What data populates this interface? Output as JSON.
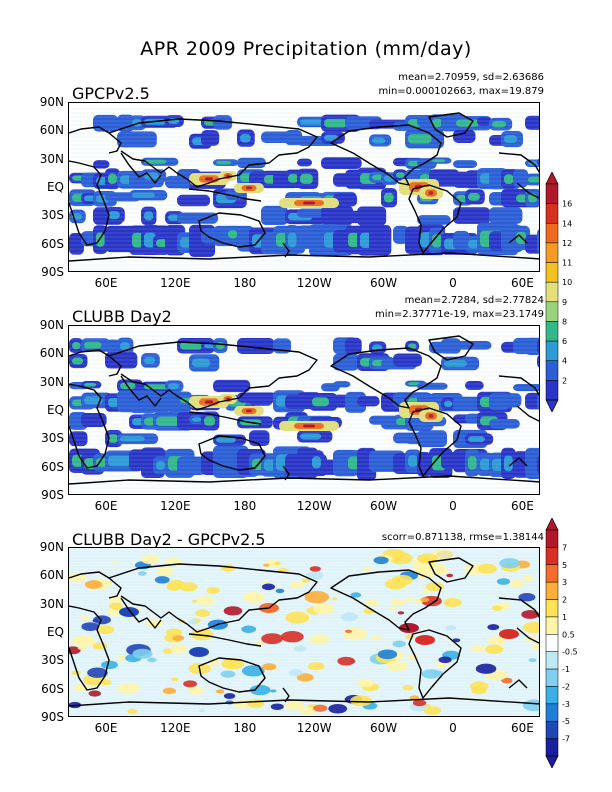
{
  "figure_title": "APR 2009 Precipitation (mm/day)",
  "lat_labels": [
    "90N",
    "60N",
    "30N",
    "EQ",
    "30S",
    "60S",
    "90S"
  ],
  "lon_labels": [
    "60E",
    "120E",
    "180",
    "120W",
    "60W",
    "0",
    "60E"
  ],
  "panels": [
    {
      "title": "GPCPv2.5",
      "stat_line1": "mean=2.70959, sd=2.63686",
      "stat_line2": "min=0.000102663, max=19.879"
    },
    {
      "title": "CLUBB Day2",
      "stat_line1": "mean=2.7284, sd=2.77824",
      "stat_line2": "min=2.37771e-19, max=23.1749"
    },
    {
      "title": "CLUBB Day2 - GPCPv2.5",
      "stat_line1": "scorr=0.871138, rmse=1.38144"
    }
  ],
  "colorbar_precip": {
    "labels": [
      "16",
      "14",
      "12",
      "11",
      "10",
      "9",
      "8",
      "6",
      "4",
      "2"
    ],
    "colors": [
      "#b2182b",
      "#d7301f",
      "#ef6a1a",
      "#f59a23",
      "#f3c221",
      "#e5e07a",
      "#9bd27c",
      "#33b88a",
      "#2f9bd6",
      "#2c5fd6",
      "#2a35c8",
      "#ffffff"
    ]
  },
  "colorbar_diff": {
    "labels": [
      "7",
      "5",
      "3",
      "2",
      "1",
      "0.5",
      "-0.5",
      "-1",
      "-2",
      "-3",
      "-5",
      "-7"
    ],
    "colors": [
      "#b2182b",
      "#d73027",
      "#f46d2a",
      "#fdae3a",
      "#fee255",
      "#fff5a8",
      "#ffffff",
      "#bfe9f5",
      "#7fd0ef",
      "#3ab0e6",
      "#1f7fd6",
      "#2146b8",
      "#1a1fa0"
    ]
  }
}
